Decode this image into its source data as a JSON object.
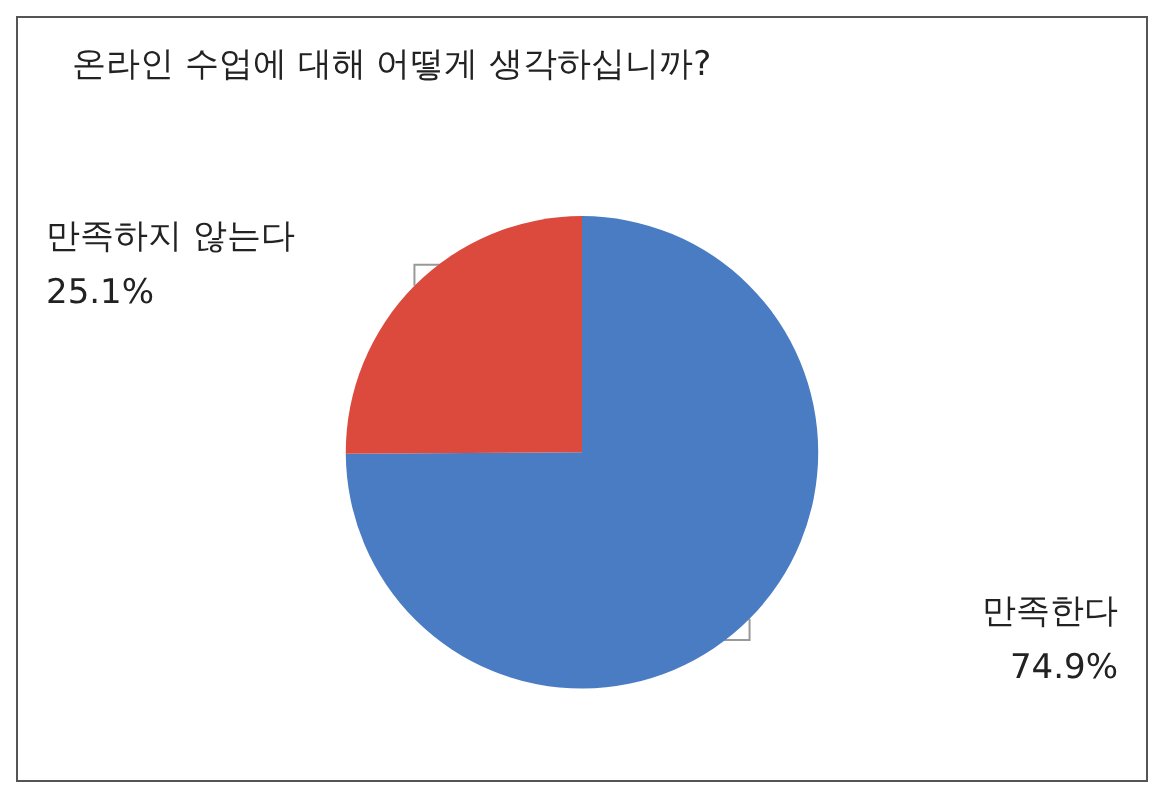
{
  "chart_data": {
    "type": "pie",
    "title": "온라인 수업에 대해 어떻게 생각하십니까?",
    "categories": [
      "만족한다",
      "만족하지 않는다"
    ],
    "values": [
      74.9,
      25.1
    ],
    "value_labels": [
      "74.9%",
      "25.1%"
    ],
    "colors": [
      "#4a7cc4",
      "#dc4a3e"
    ],
    "legend": false
  }
}
